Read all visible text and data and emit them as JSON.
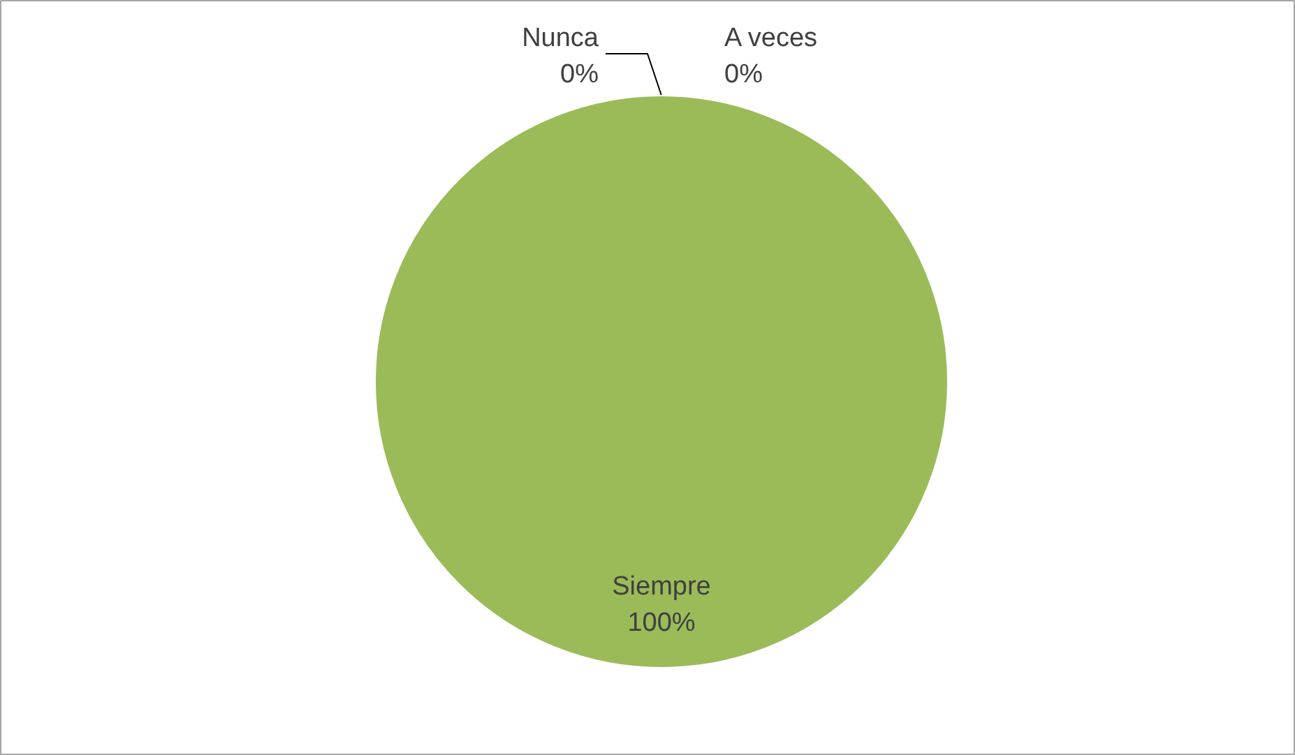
{
  "chart_data": {
    "type": "pie",
    "categories": [
      "Nunca",
      "A veces",
      "Siempre"
    ],
    "values": [
      0,
      0,
      100
    ],
    "colors": [
      "#4f81bd",
      "#c0504d",
      "#9bbb59"
    ],
    "value_labels": [
      "0%",
      "0%",
      "100%"
    ]
  }
}
